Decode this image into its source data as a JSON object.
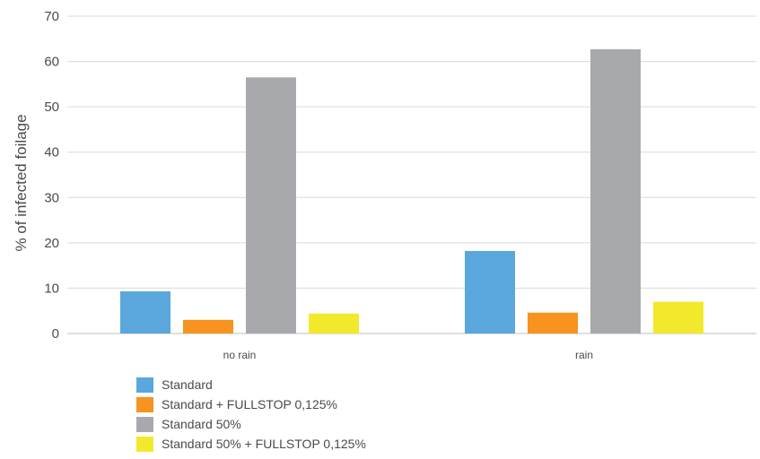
{
  "chart_data": {
    "type": "bar",
    "title": "",
    "xlabel": "",
    "ylabel": "% of infected foilage",
    "ylim": [
      0,
      70
    ],
    "yticks": [
      0,
      10,
      20,
      30,
      40,
      50,
      60,
      70
    ],
    "grid": true,
    "legend_position": "bottom-left",
    "categories": [
      "no rain",
      "rain"
    ],
    "series": [
      {
        "name": "Standard",
        "color": "#5aa7dd",
        "values": [
          9.3,
          18.2
        ]
      },
      {
        "name": "Standard + FULLSTOP 0,125%",
        "color": "#f7931e",
        "values": [
          3.0,
          4.6
        ]
      },
      {
        "name": "Standard 50%",
        "color": "#a7a9ac",
        "values": [
          56.5,
          62.7
        ]
      },
      {
        "name": "Standard 50% + FULLSTOP 0,125%",
        "color": "#f2e92d",
        "values": [
          4.4,
          7.0
        ]
      }
    ]
  }
}
